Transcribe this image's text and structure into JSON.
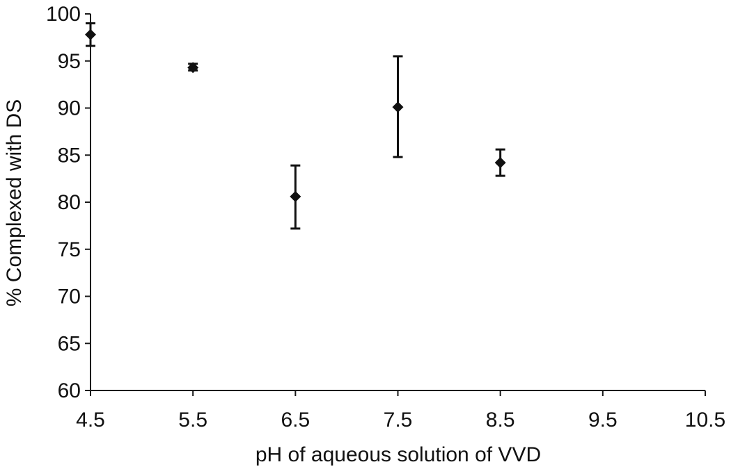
{
  "chart_data": {
    "type": "scatter",
    "title": "",
    "xlabel": "pH of aqueous solution of VVD",
    "ylabel": "% Complexed with DS",
    "xlim": [
      4.5,
      10.5
    ],
    "ylim": [
      60,
      100
    ],
    "x_ticks": [
      "4.5",
      "5.5",
      "6.5",
      "7.5",
      "8.5",
      "9.5",
      "10.5"
    ],
    "y_ticks": [
      "60",
      "65",
      "70",
      "75",
      "80",
      "85",
      "90",
      "95",
      "100"
    ],
    "grid": false,
    "legend": "none",
    "marker": "diamond",
    "marker_color": "#111111",
    "points": [
      {
        "x": 4.5,
        "y": 97.8,
        "err_low": 96.6,
        "err_high": 99.0
      },
      {
        "x": 5.5,
        "y": 94.3,
        "err_low": 94.0,
        "err_high": 94.7
      },
      {
        "x": 6.5,
        "y": 80.6,
        "err_low": 77.2,
        "err_high": 83.9
      },
      {
        "x": 7.5,
        "y": 90.1,
        "err_low": 84.8,
        "err_high": 95.5
      },
      {
        "x": 8.5,
        "y": 84.2,
        "err_low": 82.8,
        "err_high": 85.6
      }
    ]
  }
}
